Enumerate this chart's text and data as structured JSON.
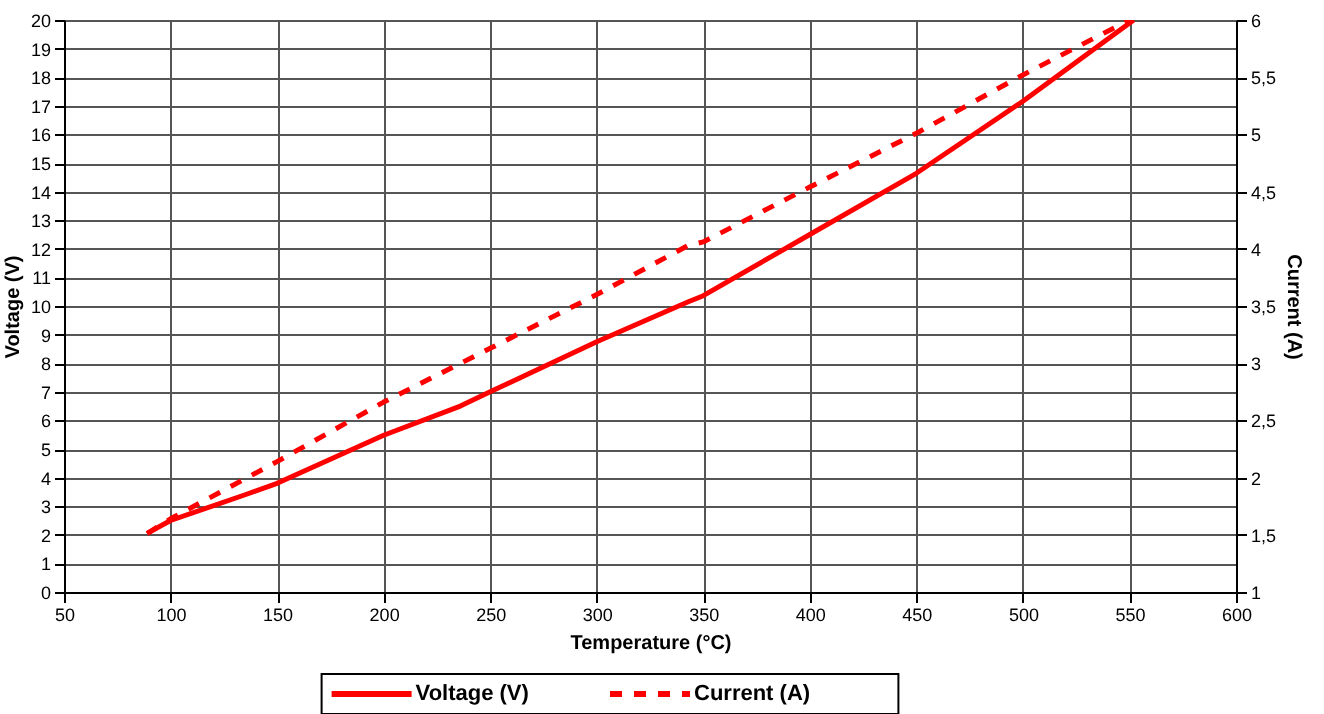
{
  "chart_data": {
    "type": "line",
    "xlabel": "Temperature (°C)",
    "ylabel": "Voltage (V)",
    "y2label": "Current (A)",
    "xlim": [
      50,
      600
    ],
    "xticks": [
      50,
      100,
      150,
      200,
      250,
      300,
      350,
      400,
      450,
      500,
      550,
      600
    ],
    "ylim": [
      0,
      20
    ],
    "yticks": [
      0,
      1,
      2,
      3,
      4,
      5,
      6,
      7,
      8,
      9,
      10,
      11,
      12,
      13,
      14,
      15,
      16,
      17,
      18,
      19,
      20
    ],
    "y2lim": [
      1,
      6
    ],
    "y2ticks": [
      1,
      {
        "value": 1.5,
        "label": "1,5"
      },
      2,
      {
        "value": 2.5,
        "label": "2,5"
      },
      3,
      {
        "value": 3.5,
        "label": "3,5"
      },
      4,
      {
        "value": 4.5,
        "label": "4,5"
      },
      5,
      {
        "value": 5.5,
        "label": "5,5"
      },
      6
    ],
    "grid": true,
    "legend": "bottom",
    "marker": "none",
    "series": [
      {
        "name": "Voltage (V)",
        "color": "#ff0000",
        "line_style": "solid",
        "x": [
          89,
          100,
          135,
          150,
          200,
          236,
          250,
          300,
          343,
          350,
          400,
          450,
          500,
          552
        ],
        "values": [
          2.05,
          2.5,
          3.4,
          3.8,
          5.48,
          6.5,
          7.0,
          8.75,
          10.15,
          10.36,
          12.5,
          14.64,
          17.16,
          20
        ]
      },
      {
        "name": "Current (A)",
        "color": "#ff0000",
        "line_style": "dashed",
        "axis": "y2",
        "x": [
          89,
          100,
          150,
          200,
          250,
          300,
          343,
          350,
          400,
          450,
          500,
          550
        ],
        "values": [
          1.51,
          1.64,
          2.14,
          2.66,
          3.13,
          3.6,
          4.03,
          4.06,
          4.54,
          5.01,
          5.52,
          6.0
        ]
      }
    ]
  }
}
